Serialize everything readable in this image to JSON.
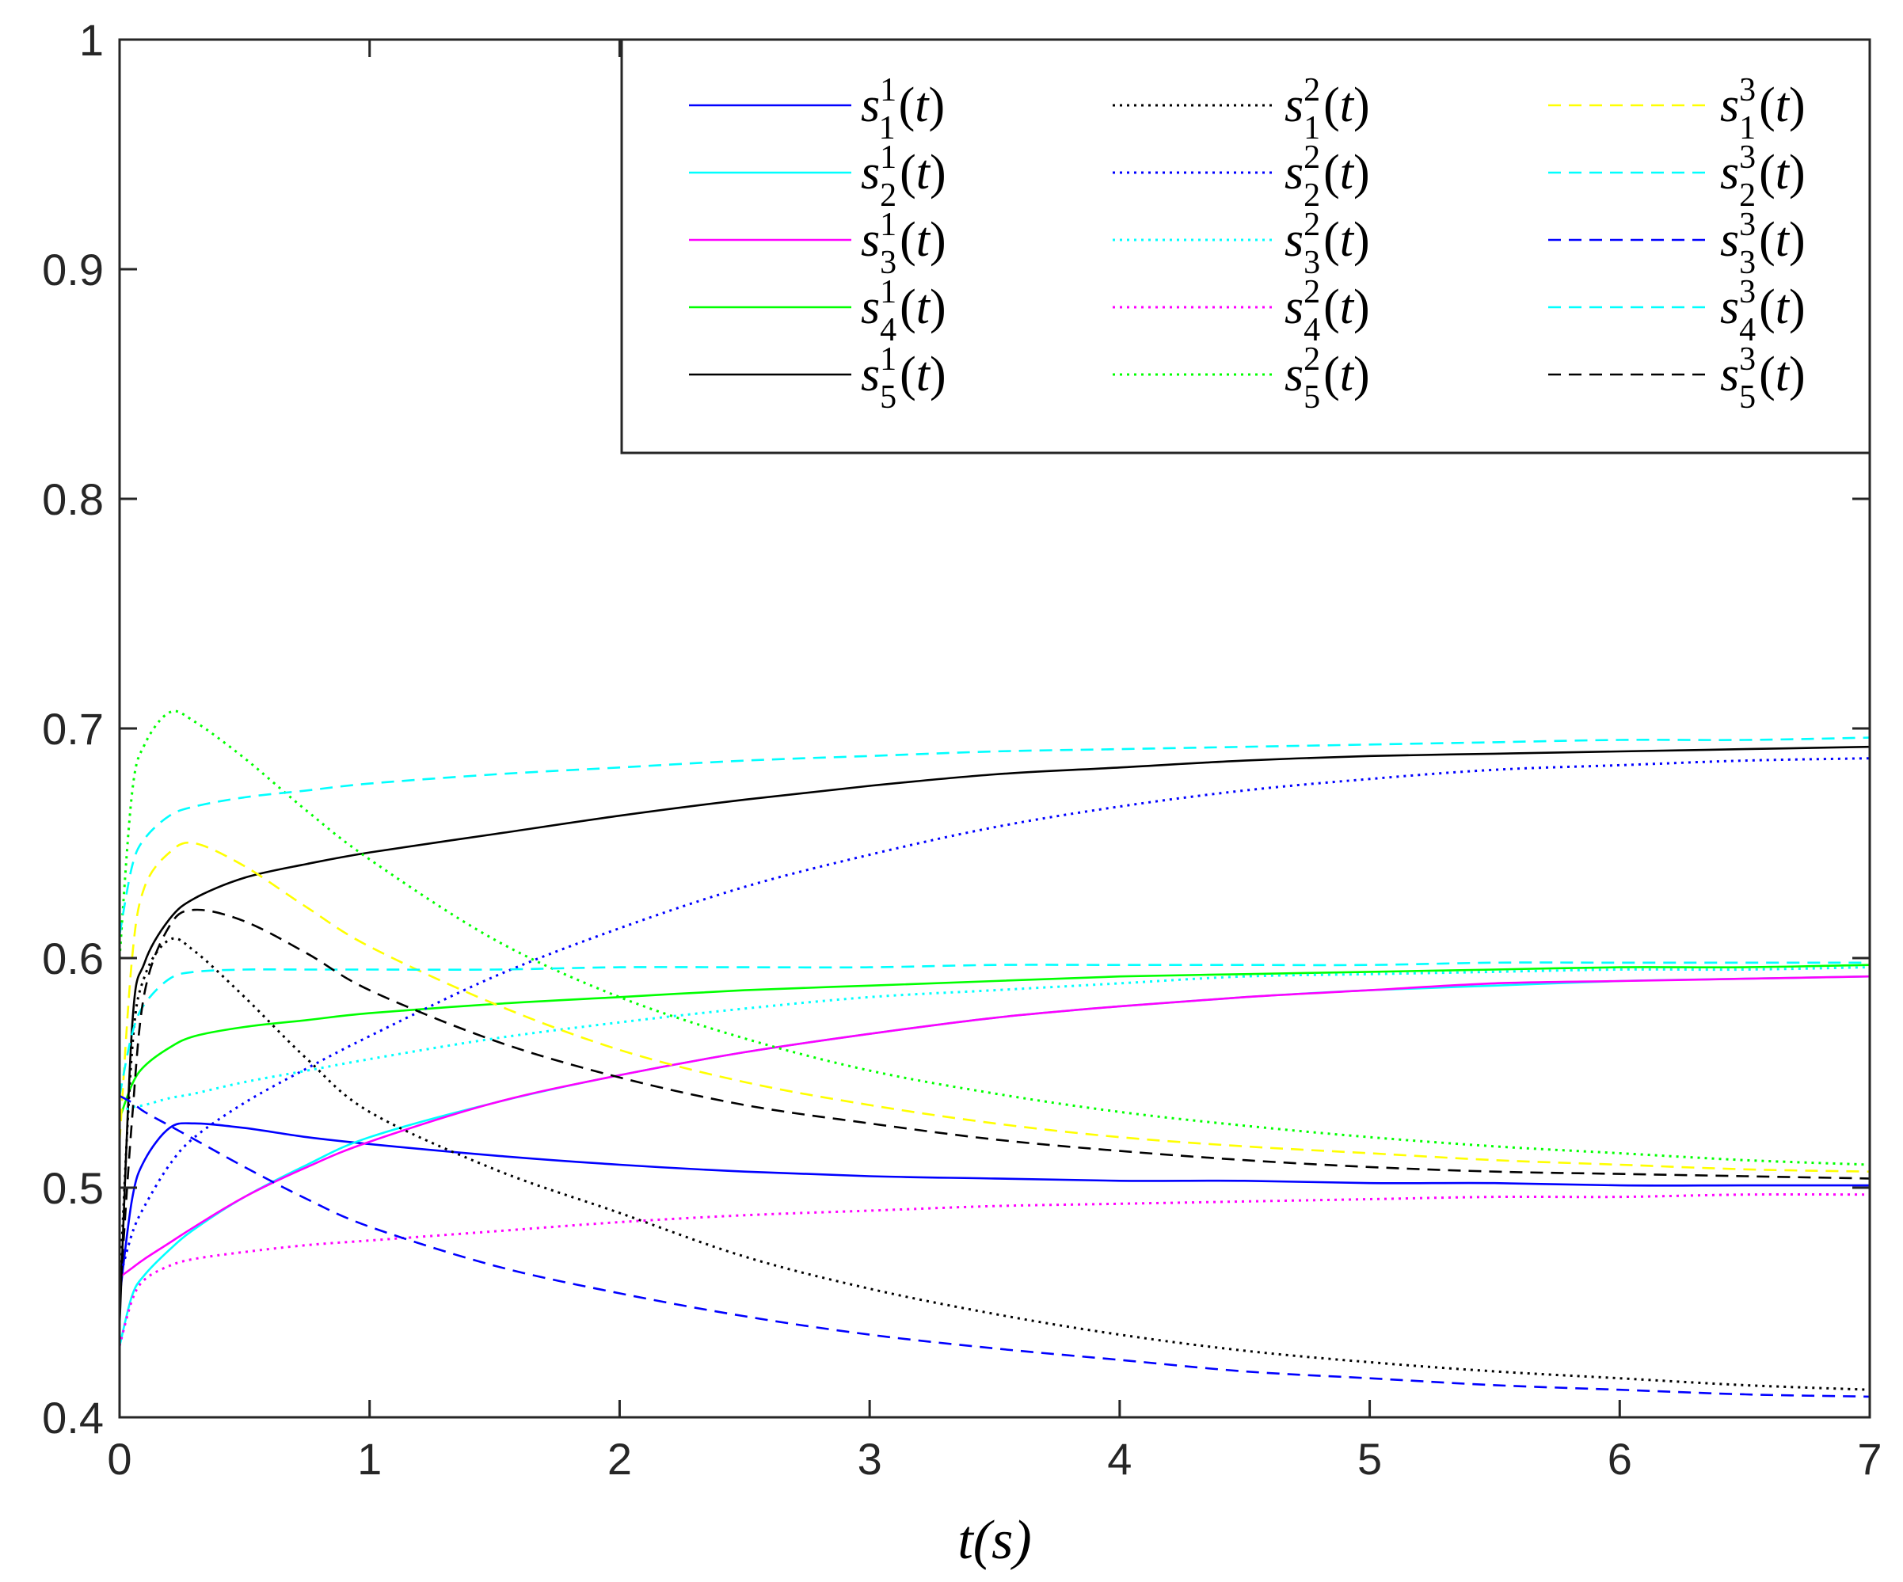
{
  "chart_data": {
    "type": "line",
    "title": "",
    "xlabel": "t(s)",
    "ylabel": "",
    "xlim": [
      0,
      7
    ],
    "ylim": [
      0.4,
      1
    ],
    "xticks": [
      0,
      1,
      2,
      3,
      4,
      5,
      6,
      7
    ],
    "xtick_labels": [
      "0",
      "1",
      "2",
      "3",
      "4",
      "5",
      "6",
      "7"
    ],
    "yticks": [
      0.4,
      0.5,
      0.6,
      0.7,
      0.8,
      0.9,
      1
    ],
    "ytick_labels": [
      "0.4",
      "0.5",
      "0.6",
      "0.7",
      "0.8",
      "0.9",
      "1"
    ],
    "grid": false,
    "legend": {
      "placement": "top-right",
      "columns": 3
    },
    "x": [
      0,
      0.05,
      0.1,
      0.2,
      0.3,
      0.5,
      0.75,
      1,
      1.5,
      2,
      2.5,
      3,
      3.5,
      4,
      4.5,
      5,
      5.5,
      6,
      6.5,
      7
    ],
    "series": [
      {
        "name": "s_1^1(t)",
        "base": "s",
        "sub": "1",
        "sup": "1",
        "color": "#0000ff",
        "style": "solid",
        "values": [
          0.452,
          0.495,
          0.512,
          0.526,
          0.528,
          0.526,
          0.522,
          0.519,
          0.514,
          0.51,
          0.507,
          0.505,
          0.504,
          0.503,
          0.503,
          0.502,
          0.502,
          0.501,
          0.501,
          0.501
        ]
      },
      {
        "name": "s_2^1(t)",
        "base": "s",
        "sub": "2",
        "sup": "1",
        "color": "#00ffff",
        "style": "solid",
        "values": [
          0.431,
          0.453,
          0.462,
          0.473,
          0.482,
          0.496,
          0.51,
          0.522,
          0.537,
          0.549,
          0.559,
          0.567,
          0.574,
          0.579,
          0.583,
          0.586,
          0.588,
          0.59,
          0.591,
          0.592
        ]
      },
      {
        "name": "s_3^1(t)",
        "base": "s",
        "sub": "3",
        "sup": "1",
        "color": "#ff00ff",
        "style": "solid",
        "values": [
          0.461,
          0.465,
          0.469,
          0.476,
          0.483,
          0.496,
          0.509,
          0.52,
          0.537,
          0.549,
          0.559,
          0.567,
          0.574,
          0.579,
          0.583,
          0.586,
          0.589,
          0.59,
          0.591,
          0.592
        ]
      },
      {
        "name": "s_4^1(t)",
        "base": "s",
        "sub": "4",
        "sup": "1",
        "color": "#00ff00",
        "style": "solid",
        "values": [
          0.53,
          0.545,
          0.553,
          0.561,
          0.566,
          0.57,
          0.573,
          0.576,
          0.58,
          0.583,
          0.586,
          0.588,
          0.59,
          0.592,
          0.593,
          0.594,
          0.595,
          0.596,
          0.596,
          0.597
        ]
      },
      {
        "name": "s_5^1(t)",
        "base": "s",
        "sub": "5",
        "sup": "1",
        "color": "#000000",
        "style": "solid",
        "values": [
          0.44,
          0.57,
          0.598,
          0.617,
          0.626,
          0.635,
          0.641,
          0.646,
          0.654,
          0.662,
          0.669,
          0.675,
          0.68,
          0.683,
          0.686,
          0.688,
          0.689,
          0.69,
          0.691,
          0.692
        ]
      },
      {
        "name": "s_1^2(t)",
        "base": "s",
        "sub": "1",
        "sup": "2",
        "color": "#000000",
        "style": "dotted",
        "values": [
          0.455,
          0.56,
          0.592,
          0.608,
          0.603,
          0.583,
          0.556,
          0.533,
          0.508,
          0.489,
          0.47,
          0.456,
          0.445,
          0.436,
          0.429,
          0.424,
          0.42,
          0.417,
          0.414,
          0.412
        ]
      },
      {
        "name": "s_2^2(t)",
        "base": "s",
        "sub": "2",
        "sup": "2",
        "color": "#0000ff",
        "style": "dotted",
        "values": [
          0.46,
          0.48,
          0.492,
          0.51,
          0.522,
          0.537,
          0.552,
          0.566,
          0.592,
          0.613,
          0.631,
          0.645,
          0.657,
          0.666,
          0.673,
          0.678,
          0.682,
          0.684,
          0.686,
          0.687
        ]
      },
      {
        "name": "s_3^2(t)",
        "base": "s",
        "sub": "3",
        "sup": "2",
        "color": "#00ffff",
        "style": "dotted",
        "values": [
          0.533,
          0.535,
          0.536,
          0.539,
          0.541,
          0.546,
          0.551,
          0.556,
          0.565,
          0.572,
          0.578,
          0.583,
          0.586,
          0.589,
          0.592,
          0.593,
          0.594,
          0.595,
          0.595,
          0.596
        ]
      },
      {
        "name": "s_4^2(t)",
        "base": "s",
        "sub": "4",
        "sup": "2",
        "color": "#ff00ff",
        "style": "dotted",
        "values": [
          0.431,
          0.451,
          0.46,
          0.466,
          0.469,
          0.472,
          0.475,
          0.477,
          0.481,
          0.485,
          0.488,
          0.49,
          0.492,
          0.493,
          0.494,
          0.495,
          0.496,
          0.496,
          0.497,
          0.497
        ]
      },
      {
        "name": "s_5^2(t)",
        "base": "s",
        "sub": "5",
        "sup": "2",
        "color": "#00ff00",
        "style": "dotted",
        "values": [
          0.6,
          0.672,
          0.693,
          0.707,
          0.703,
          0.687,
          0.664,
          0.643,
          0.608,
          0.583,
          0.565,
          0.551,
          0.541,
          0.533,
          0.527,
          0.522,
          0.518,
          0.515,
          0.512,
          0.51
        ]
      },
      {
        "name": "s_1^3(t)",
        "base": "s",
        "sub": "1",
        "sup": "3",
        "color": "#ffff00",
        "style": "dashed",
        "values": [
          0.52,
          0.6,
          0.631,
          0.646,
          0.65,
          0.64,
          0.622,
          0.605,
          0.58,
          0.56,
          0.546,
          0.536,
          0.528,
          0.522,
          0.518,
          0.515,
          0.512,
          0.51,
          0.508,
          0.507
        ]
      },
      {
        "name": "s_2^3(t)",
        "base": "s",
        "sub": "2",
        "sup": "3",
        "color": "#00ffff",
        "style": "dashed",
        "values": [
          0.61,
          0.64,
          0.652,
          0.662,
          0.666,
          0.67,
          0.673,
          0.676,
          0.68,
          0.683,
          0.686,
          0.688,
          0.69,
          0.691,
          0.692,
          0.693,
          0.694,
          0.695,
          0.695,
          0.696
        ]
      },
      {
        "name": "s_3^3(t)",
        "base": "s",
        "sub": "3",
        "sup": "3",
        "color": "#0000ff",
        "style": "dashed",
        "values": [
          0.54,
          0.537,
          0.533,
          0.527,
          0.521,
          0.509,
          0.495,
          0.483,
          0.466,
          0.454,
          0.444,
          0.436,
          0.43,
          0.425,
          0.42,
          0.417,
          0.414,
          0.412,
          0.41,
          0.409
        ]
      },
      {
        "name": "s_4^3(t)",
        "base": "s",
        "sub": "4",
        "sup": "3",
        "color": "#00ffff",
        "style": "dashed",
        "values": [
          0.54,
          0.567,
          0.58,
          0.591,
          0.594,
          0.595,
          0.595,
          0.595,
          0.595,
          0.596,
          0.596,
          0.596,
          0.597,
          0.597,
          0.597,
          0.597,
          0.598,
          0.598,
          0.598,
          0.598
        ]
      },
      {
        "name": "s_5^3(t)",
        "base": "s",
        "sub": "5",
        "sup": "3",
        "color": "#000000",
        "style": "dashed",
        "values": [
          0.45,
          0.53,
          0.585,
          0.614,
          0.621,
          0.616,
          0.602,
          0.586,
          0.564,
          0.548,
          0.536,
          0.528,
          0.521,
          0.516,
          0.512,
          0.509,
          0.507,
          0.506,
          0.505,
          0.504
        ]
      }
    ]
  }
}
